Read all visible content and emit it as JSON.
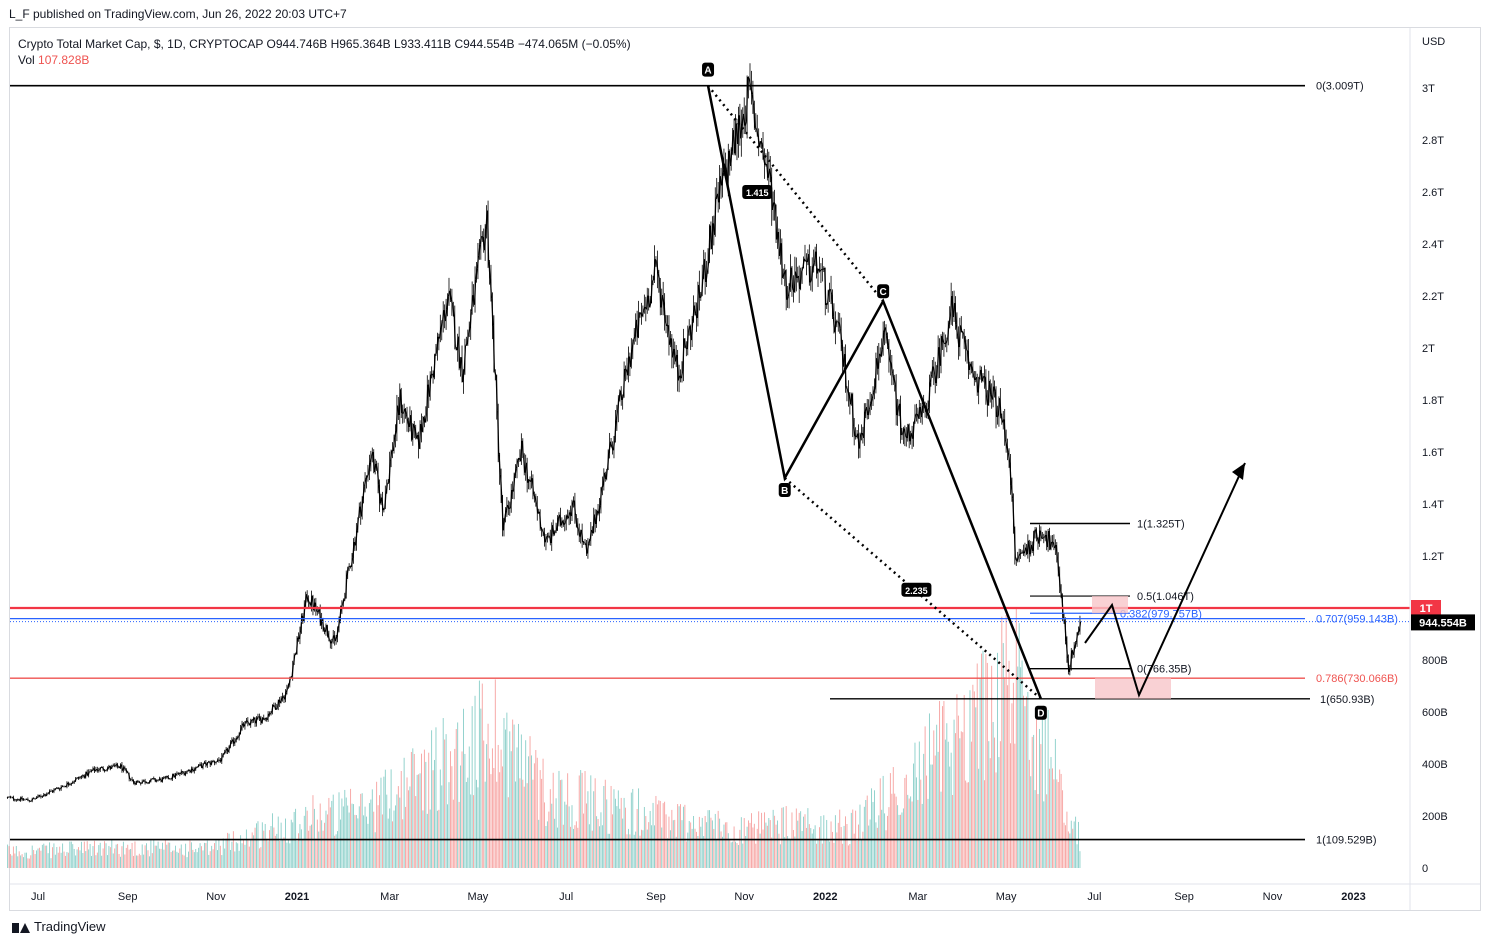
{
  "publisher": "L_F published on TradingView.com, Jun 26, 2022 20:03 UTC+7",
  "legend": {
    "line1": "Crypto Total Market Cap, $, 1D, CRYPTOCAP  O944.746B  H965.364B  L933.411B  C944.554B  −474.065M (−0.05%)",
    "vol_label": "Vol",
    "vol_value": "107.828B"
  },
  "footer": {
    "brand": "TradingView"
  },
  "chart_data": {
    "type": "candlestick",
    "currency_label": "USD",
    "y_ticks": [
      "3T",
      "2.8T",
      "2.6T",
      "2.4T",
      "2.2T",
      "2T",
      "1.8T",
      "1.6T",
      "1.4T",
      "1.2T",
      "1T",
      "800B",
      "600B",
      "400B",
      "200B",
      "0"
    ],
    "x_ticks": [
      "Jul",
      "Sep",
      "Nov",
      "2021",
      "Mar",
      "May",
      "Jul",
      "Sep",
      "Nov",
      "2022",
      "Mar",
      "May",
      "Jul",
      "Sep",
      "Nov",
      "2023"
    ],
    "price_badges": {
      "level_1t": "1T",
      "last_price": "944.554B"
    },
    "series": [
      {
        "name": "Crypto Total Market Cap",
        "points": [
          [
            "2020-06-15",
            0.27
          ],
          [
            "2020-07-01",
            0.26
          ],
          [
            "2020-07-25",
            0.32
          ],
          [
            "2020-08-15",
            0.38
          ],
          [
            "2020-09-01",
            0.39
          ],
          [
            "2020-09-10",
            0.33
          ],
          [
            "2020-10-01",
            0.34
          ],
          [
            "2020-10-20",
            0.38
          ],
          [
            "2020-11-10",
            0.42
          ],
          [
            "2020-11-25",
            0.55
          ],
          [
            "2020-12-10",
            0.58
          ],
          [
            "2020-12-25",
            0.68
          ],
          [
            "2021-01-08",
            1.05
          ],
          [
            "2021-01-27",
            0.86
          ],
          [
            "2021-02-21",
            1.6
          ],
          [
            "2021-03-01",
            1.38
          ],
          [
            "2021-03-13",
            1.8
          ],
          [
            "2021-03-25",
            1.62
          ],
          [
            "2021-04-15",
            2.2
          ],
          [
            "2021-04-25",
            1.92
          ],
          [
            "2021-05-12",
            2.5
          ],
          [
            "2021-05-23",
            1.3
          ],
          [
            "2021-06-05",
            1.6
          ],
          [
            "2021-06-22",
            1.25
          ],
          [
            "2021-07-10",
            1.4
          ],
          [
            "2021-07-20",
            1.2
          ],
          [
            "2021-08-05",
            1.6
          ],
          [
            "2021-08-20",
            2.0
          ],
          [
            "2021-09-06",
            2.3
          ],
          [
            "2021-09-21",
            1.9
          ],
          [
            "2021-10-06",
            2.2
          ],
          [
            "2021-10-20",
            2.6
          ],
          [
            "2021-11-09",
            2.98
          ],
          [
            "2021-11-25",
            2.6
          ],
          [
            "2021-12-04",
            2.25
          ],
          [
            "2021-12-27",
            2.32
          ],
          [
            "2022-01-10",
            2.05
          ],
          [
            "2022-01-24",
            1.62
          ],
          [
            "2022-02-10",
            2.05
          ],
          [
            "2022-02-24",
            1.65
          ],
          [
            "2022-03-10",
            1.75
          ],
          [
            "2022-03-29",
            2.15
          ],
          [
            "2022-04-11",
            1.92
          ],
          [
            "2022-04-30",
            1.78
          ],
          [
            "2022-05-08",
            1.6
          ],
          [
            "2022-05-12",
            1.18
          ],
          [
            "2022-05-31",
            1.3
          ],
          [
            "2022-06-10",
            1.2
          ],
          [
            "2022-06-18",
            0.77
          ],
          [
            "2022-06-26",
            0.945
          ]
        ]
      }
    ],
    "volume": {
      "label": "Vol",
      "points": [
        [
          "2020-06-15",
          60
        ],
        [
          "2020-09-01",
          75
        ],
        [
          "2020-11-01",
          70
        ],
        [
          "2021-01-10",
          190
        ],
        [
          "2021-02-15",
          210
        ],
        [
          "2021-05-19",
          520
        ],
        [
          "2021-06-22",
          280
        ],
        [
          "2021-09-07",
          190
        ],
        [
          "2021-11-10",
          140
        ],
        [
          "2021-12-04",
          160
        ],
        [
          "2022-01-22",
          150
        ],
        [
          "2022-05-12",
          690
        ],
        [
          "2022-06-13",
          300
        ],
        [
          "2022-06-26",
          110
        ]
      ]
    },
    "fib_levels": [
      {
        "label": "0(3.009T)",
        "value": 3.009,
        "color": "#000000"
      },
      {
        "label": "1(1.325T)",
        "value": 1.325,
        "color": "#000000"
      },
      {
        "label": "0.5(1.046T)",
        "value": 1.046,
        "color": "#000000"
      },
      {
        "label": "0.382(979.757B)",
        "value": 0.9798,
        "color": "#2962ff"
      },
      {
        "label": "0.707(959.143B)",
        "value": 0.9591,
        "color": "#2962ff"
      },
      {
        "label": "0(766.35B)",
        "value": 0.7664,
        "color": "#000000"
      },
      {
        "label": "0.786(730.066B)",
        "value": 0.7301,
        "color": "#ef5350"
      },
      {
        "label": "1(650.93B)",
        "value": 0.6509,
        "color": "#000000"
      },
      {
        "label": "1(109.529B)",
        "value": 0.1095,
        "color": "#000000"
      }
    ],
    "pattern_points": [
      {
        "label": "A",
        "date": "2021-10-12",
        "value": 3.009
      },
      {
        "label": "B",
        "date": "2021-12-04",
        "value": 1.5
      },
      {
        "label": "C",
        "date": "2022-02-10",
        "value": 2.18
      },
      {
        "label": "D",
        "date": "2022-05-30",
        "value": 0.651
      }
    ],
    "ratio_labels": [
      "1.415",
      "2.235"
    ],
    "colors": {
      "line": "#000000",
      "red_level": "#f23645",
      "blue_level": "#2962ff",
      "up_volume": "#26a69a",
      "down_volume": "#ef5350",
      "zone": "#f7c6c9"
    }
  }
}
